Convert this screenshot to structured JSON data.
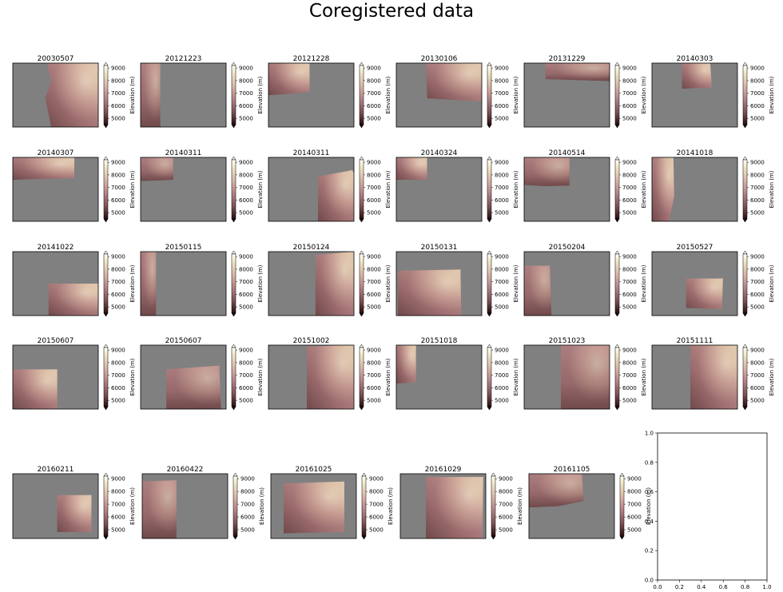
{
  "title": "Coregistered data",
  "chart_data": {
    "type": "heatmap",
    "colormap": "pink-to-cream (matplotlib 'pink')",
    "colors": {
      "background": "#808080",
      "cmap_low": "#1f0a0a",
      "cmap_mid": "#b9858a",
      "cmap_high": "#fefeee"
    },
    "colorbar": {
      "label": "Elevation (m)",
      "ticks": [
        "5000",
        "6000",
        "7000",
        "8000",
        "9000"
      ],
      "range": [
        4500,
        9200
      ],
      "extend": "both"
    },
    "panels": [
      {
        "title": "20030507",
        "coverage": "right portion, broken lower area"
      },
      {
        "title": "20121223",
        "coverage": "narrow left strip"
      },
      {
        "title": "20121228",
        "coverage": "top-left block"
      },
      {
        "title": "20130106",
        "coverage": "upper right block"
      },
      {
        "title": "20131229",
        "coverage": "thin top strip"
      },
      {
        "title": "20140303",
        "coverage": "small upper-right patch"
      },
      {
        "title": "20140307",
        "coverage": "top-left band"
      },
      {
        "title": "20140311",
        "coverage": "small top-left patch"
      },
      {
        "title": "20140311",
        "coverage": "lower right block"
      },
      {
        "title": "20140324",
        "coverage": "small top-left patch"
      },
      {
        "title": "20140514",
        "coverage": "top-left block"
      },
      {
        "title": "20141018",
        "coverage": "left strip"
      },
      {
        "title": "20141022",
        "coverage": "lower right band"
      },
      {
        "title": "20150115",
        "coverage": "narrow left strip"
      },
      {
        "title": "20150124",
        "coverage": "right half"
      },
      {
        "title": "20150131",
        "coverage": "large central block"
      },
      {
        "title": "20150204",
        "coverage": "left block"
      },
      {
        "title": "20150527",
        "coverage": "central patch"
      },
      {
        "title": "20150607",
        "coverage": "lower left block"
      },
      {
        "title": "20150607",
        "coverage": "lower right block"
      },
      {
        "title": "20151002",
        "coverage": "right half"
      },
      {
        "title": "20151018",
        "coverage": "small left block"
      },
      {
        "title": "20151023",
        "coverage": "right half"
      },
      {
        "title": "20151111",
        "coverage": "right half"
      },
      {
        "title": "20160211",
        "coverage": "right-middle block"
      },
      {
        "title": "20160422",
        "coverage": "left block"
      },
      {
        "title": "20161025",
        "coverage": "central block"
      },
      {
        "title": "20161029",
        "coverage": "most of frame"
      },
      {
        "title": "20161105",
        "coverage": "top-left block"
      }
    ],
    "empty_axes": {
      "xticks": [
        "0.0",
        "0.2",
        "0.4",
        "0.6",
        "0.8",
        "1.0"
      ],
      "yticks": [
        "0.0",
        "0.2",
        "0.4",
        "0.6",
        "0.8",
        "1.0"
      ],
      "xlim": [
        0,
        1
      ],
      "ylim": [
        0,
        1
      ]
    }
  }
}
